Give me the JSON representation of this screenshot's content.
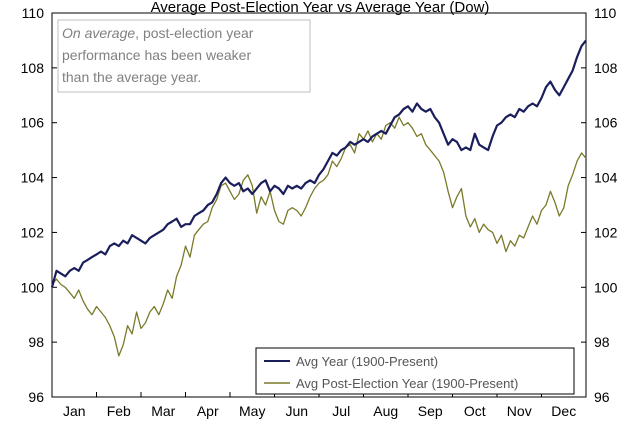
{
  "chart_data": {
    "type": "line",
    "title": "Average Post-Election Year vs Average Year (Dow)",
    "annotation": {
      "italic_part": "On average",
      "rest_first_line": ", post-election year",
      "lines": [
        "performance has been weaker",
        "than the average year."
      ]
    },
    "ylim": [
      96,
      110
    ],
    "y_ticks": [
      "96",
      "98",
      "100",
      "102",
      "104",
      "106",
      "108",
      "110"
    ],
    "x_categories": [
      "Jan",
      "Feb",
      "Mar",
      "Apr",
      "May",
      "Jun",
      "Jul",
      "Aug",
      "Sep",
      "Oct",
      "Nov",
      "Dec"
    ],
    "grid": false,
    "legend_position": "bottom-right",
    "series": [
      {
        "name": "Avg Year (1900-Present)",
        "color": "#1a1f5c",
        "x": [
          0,
          0.05,
          0.1,
          0.2,
          0.3,
          0.4,
          0.5,
          0.6,
          0.7,
          0.8,
          0.9,
          1.0,
          1.1,
          1.2,
          1.3,
          1.4,
          1.5,
          1.6,
          1.7,
          1.8,
          1.9,
          2.0,
          2.1,
          2.2,
          2.3,
          2.4,
          2.5,
          2.6,
          2.7,
          2.8,
          2.9,
          3.0,
          3.1,
          3.2,
          3.3,
          3.4,
          3.5,
          3.6,
          3.7,
          3.8,
          3.9,
          4.0,
          4.1,
          4.2,
          4.3,
          4.4,
          4.5,
          4.6,
          4.7,
          4.8,
          4.9,
          5.0,
          5.1,
          5.2,
          5.3,
          5.4,
          5.5,
          5.6,
          5.7,
          5.8,
          5.9,
          6.0,
          6.1,
          6.2,
          6.3,
          6.4,
          6.5,
          6.6,
          6.7,
          6.8,
          6.9,
          7.0,
          7.1,
          7.2,
          7.3,
          7.4,
          7.5,
          7.6,
          7.7,
          7.8,
          7.9,
          8.0,
          8.1,
          8.2,
          8.3,
          8.4,
          8.5,
          8.6,
          8.7,
          8.8,
          8.9,
          9.0,
          9.1,
          9.2,
          9.3,
          9.4,
          9.5,
          9.6,
          9.7,
          9.8,
          9.9,
          10.0,
          10.1,
          10.2,
          10.3,
          10.4,
          10.5,
          10.6,
          10.7,
          10.8,
          10.9,
          11.0,
          11.1,
          11.2,
          11.3,
          11.4,
          11.5,
          11.6,
          11.7,
          11.8,
          11.9,
          12.0
        ],
        "values": [
          100.0,
          100.3,
          100.6,
          100.5,
          100.4,
          100.6,
          100.7,
          100.6,
          100.9,
          101.0,
          101.1,
          101.2,
          101.3,
          101.2,
          101.5,
          101.6,
          101.5,
          101.7,
          101.6,
          101.9,
          101.8,
          101.7,
          101.6,
          101.8,
          101.9,
          102.0,
          102.1,
          102.3,
          102.4,
          102.5,
          102.2,
          102.3,
          102.3,
          102.6,
          102.7,
          102.8,
          103.0,
          103.1,
          103.4,
          103.8,
          104.0,
          103.8,
          103.7,
          103.8,
          103.5,
          103.6,
          103.4,
          103.6,
          103.8,
          103.9,
          103.5,
          103.7,
          103.6,
          103.4,
          103.7,
          103.6,
          103.7,
          103.6,
          103.8,
          103.9,
          103.8,
          104.1,
          104.3,
          104.6,
          104.9,
          104.8,
          105.0,
          105.1,
          105.3,
          105.2,
          105.3,
          105.4,
          105.3,
          105.5,
          105.6,
          105.7,
          105.6,
          105.9,
          106.2,
          106.3,
          106.5,
          106.6,
          106.4,
          106.7,
          106.5,
          106.4,
          106.5,
          106.2,
          106.0,
          105.6,
          105.2,
          105.4,
          105.3,
          105.0,
          105.1,
          105.0,
          105.6,
          105.2,
          105.1,
          105.0,
          105.5,
          105.9,
          106.0,
          106.2,
          106.3,
          106.2,
          106.5,
          106.4,
          106.6,
          106.7,
          106.6,
          106.9,
          107.3,
          107.5,
          107.2,
          107.0,
          107.3,
          107.6,
          107.9,
          108.4,
          108.8,
          109.0
        ]
      },
      {
        "name": "Avg Post-Election Year (1900-Present)",
        "color": "#7a7a2a",
        "x": [
          0,
          0.05,
          0.1,
          0.2,
          0.3,
          0.4,
          0.5,
          0.6,
          0.7,
          0.8,
          0.9,
          1.0,
          1.1,
          1.2,
          1.3,
          1.4,
          1.5,
          1.6,
          1.7,
          1.8,
          1.9,
          2.0,
          2.1,
          2.2,
          2.3,
          2.4,
          2.5,
          2.6,
          2.7,
          2.8,
          2.9,
          3.0,
          3.1,
          3.2,
          3.3,
          3.4,
          3.5,
          3.6,
          3.7,
          3.8,
          3.9,
          4.0,
          4.1,
          4.2,
          4.3,
          4.4,
          4.5,
          4.6,
          4.7,
          4.8,
          4.9,
          5.0,
          5.1,
          5.2,
          5.3,
          5.4,
          5.5,
          5.6,
          5.7,
          5.8,
          5.9,
          6.0,
          6.1,
          6.2,
          6.3,
          6.4,
          6.5,
          6.6,
          6.7,
          6.8,
          6.9,
          7.0,
          7.1,
          7.2,
          7.3,
          7.4,
          7.5,
          7.6,
          7.7,
          7.8,
          7.9,
          8.0,
          8.1,
          8.2,
          8.3,
          8.4,
          8.5,
          8.6,
          8.7,
          8.8,
          8.9,
          9.0,
          9.1,
          9.2,
          9.3,
          9.4,
          9.5,
          9.6,
          9.7,
          9.8,
          9.9,
          10.0,
          10.1,
          10.2,
          10.3,
          10.4,
          10.5,
          10.6,
          10.7,
          10.8,
          10.9,
          11.0,
          11.1,
          11.2,
          11.3,
          11.4,
          11.5,
          11.6,
          11.7,
          11.8,
          11.9,
          12.0
        ],
        "values": [
          100.0,
          100.2,
          100.3,
          100.1,
          100.0,
          99.8,
          99.6,
          99.9,
          99.5,
          99.2,
          99.0,
          99.3,
          99.1,
          98.9,
          98.6,
          98.2,
          97.5,
          97.9,
          98.6,
          98.3,
          99.1,
          98.5,
          98.7,
          99.1,
          99.3,
          99.0,
          99.4,
          99.9,
          99.6,
          100.4,
          100.8,
          101.5,
          101.1,
          101.9,
          102.1,
          102.3,
          102.4,
          102.9,
          103.2,
          103.7,
          103.8,
          103.5,
          103.2,
          103.4,
          103.9,
          104.1,
          103.7,
          102.7,
          103.3,
          103.0,
          103.5,
          102.8,
          102.4,
          102.3,
          102.8,
          102.9,
          102.8,
          102.6,
          102.9,
          103.3,
          103.6,
          103.8,
          103.9,
          104.1,
          104.6,
          104.4,
          104.7,
          105.1,
          105.2,
          104.9,
          105.6,
          105.4,
          105.7,
          105.3,
          105.6,
          105.4,
          105.9,
          106.0,
          105.8,
          106.2,
          105.9,
          106.0,
          105.8,
          105.5,
          105.6,
          105.2,
          105.0,
          104.8,
          104.6,
          104.2,
          103.5,
          102.9,
          103.3,
          103.6,
          102.6,
          102.2,
          102.5,
          102.0,
          102.3,
          102.1,
          102.0,
          101.6,
          101.9,
          101.3,
          101.7,
          101.5,
          101.9,
          101.8,
          102.2,
          102.6,
          102.3,
          102.8,
          103.0,
          103.5,
          103.1,
          102.6,
          102.9,
          103.7,
          104.1,
          104.6,
          104.9,
          104.7
        ]
      }
    ]
  }
}
